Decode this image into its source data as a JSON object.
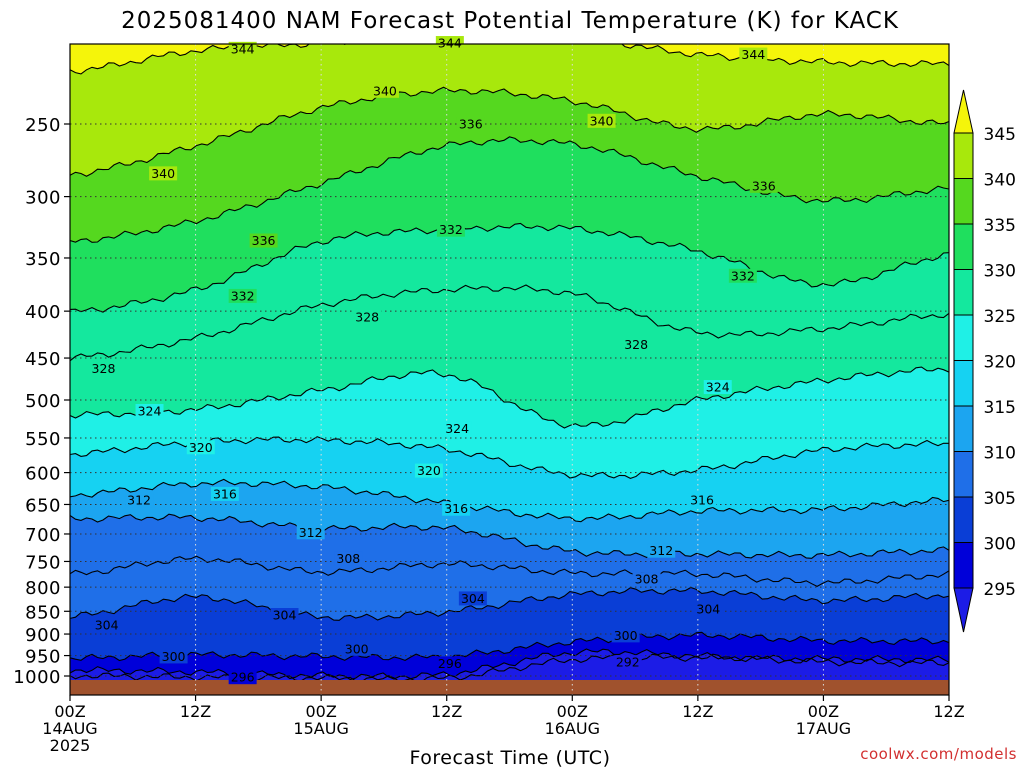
{
  "chart_data": {
    "type": "heatmap",
    "title": "2025081400 NAM Forecast Potential Temperature (K) for KACK",
    "xlabel": "Forecast Time (UTC)",
    "ylabel": "",
    "credit": "coolwx.com/models",
    "x_range_hours": [
      0,
      84
    ],
    "x_ticks": [
      {
        "hour": 0,
        "lines": [
          "00Z",
          "14AUG",
          "2025"
        ]
      },
      {
        "hour": 12,
        "lines": [
          "12Z"
        ]
      },
      {
        "hour": 24,
        "lines": [
          "00Z",
          "15AUG"
        ]
      },
      {
        "hour": 36,
        "lines": [
          "12Z"
        ]
      },
      {
        "hour": 48,
        "lines": [
          "00Z",
          "16AUG"
        ]
      },
      {
        "hour": 60,
        "lines": [
          "12Z"
        ]
      },
      {
        "hour": 72,
        "lines": [
          "00Z",
          "17AUG"
        ]
      },
      {
        "hour": 84,
        "lines": [
          "12Z"
        ]
      }
    ],
    "y_scale": "log-pressure",
    "y_range_hpa": [
      1013,
      200
    ],
    "y_ticks": [
      250,
      300,
      350,
      400,
      450,
      500,
      550,
      600,
      650,
      700,
      750,
      800,
      850,
      900,
      950,
      1000
    ],
    "grid": true,
    "colorbar": {
      "levels": [
        295,
        300,
        305,
        310,
        315,
        320,
        325,
        330,
        335,
        340,
        345
      ],
      "colors": [
        "#1c1ce6",
        "#0000d9",
        "#0a3ed6",
        "#1f6fe8",
        "#1ca5f0",
        "#16d2f2",
        "#1ff0e6",
        "#14e89e",
        "#1fdf5e",
        "#55d81f",
        "#a8e80c",
        "#f5f50a"
      ],
      "extend": "both"
    },
    "series": [
      {
        "theta": 292,
        "pressure": [
          999,
          1003,
          1005,
          1005,
          960,
          955,
          958,
          960
        ]
      },
      {
        "theta": 296,
        "pressure": [
          985,
          990,
          999,
          995,
          943,
          951,
          965,
          968
        ]
      },
      {
        "theta": 300,
        "pressure": [
          957,
          948,
          952,
          952,
          918,
          903,
          915,
          916
        ]
      },
      {
        "theta": 304,
        "pressure": [
          862,
          820,
          862,
          851,
          815,
          808,
          827,
          816
        ]
      },
      {
        "theta": 308,
        "pressure": [
          775,
          745,
          770,
          755,
          772,
          774,
          791,
          775
        ]
      },
      {
        "theta": 312,
        "pressure": [
          674,
          672,
          690,
          690,
          731,
          736,
          738,
          729
        ]
      },
      {
        "theta": 316,
        "pressure": [
          635,
          617,
          622,
          648,
          673,
          661,
          658,
          643
        ]
      },
      {
        "theta": 320,
        "pressure": [
          573,
          556,
          553,
          566,
          603,
          596,
          567,
          558
        ]
      },
      {
        "theta": 324,
        "pressure": [
          519,
          512,
          488,
          469,
          533,
          500,
          476,
          462
        ]
      },
      {
        "theta": 328,
        "pressure": [
          450,
          428,
          394,
          379,
          383,
          422,
          418,
          403
        ]
      },
      {
        "theta": 332,
        "pressure": [
          401,
          379,
          336,
          326,
          325,
          344,
          374,
          347
        ]
      },
      {
        "theta": 336,
        "pressure": [
          336,
          319,
          290,
          264,
          263,
          285,
          303,
          294
        ]
      },
      {
        "theta": 340,
        "pressure": [
          284,
          264,
          240,
          230,
          236,
          253,
          244,
          250
        ]
      },
      {
        "theta": 344,
        "pressure": [
          219,
          208,
          204,
          200,
          201,
          210,
          214,
          215
        ]
      }
    ],
    "contour_labels": [
      {
        "text": "344",
        "hour": 16.5,
        "hpa": 207
      },
      {
        "text": "344",
        "hour": 36.3,
        "hpa": 204
      },
      {
        "text": "344",
        "hour": 65.3,
        "hpa": 210
      },
      {
        "text": "340",
        "hour": 8.9,
        "hpa": 283
      },
      {
        "text": "340",
        "hour": 30.1,
        "hpa": 230
      },
      {
        "text": "340",
        "hour": 50.8,
        "hpa": 248
      },
      {
        "text": "336",
        "hour": 18.5,
        "hpa": 335
      },
      {
        "text": "336",
        "hour": 38.3,
        "hpa": 250
      },
      {
        "text": "336",
        "hour": 66.3,
        "hpa": 292
      },
      {
        "text": "332",
        "hour": 16.5,
        "hpa": 385
      },
      {
        "text": "332",
        "hour": 36.4,
        "hpa": 326
      },
      {
        "text": "332",
        "hour": 64.3,
        "hpa": 366
      },
      {
        "text": "328",
        "hour": 3.2,
        "hpa": 462
      },
      {
        "text": "328",
        "hour": 28.4,
        "hpa": 406
      },
      {
        "text": "328",
        "hour": 54.1,
        "hpa": 435
      },
      {
        "text": "324",
        "hour": 7.6,
        "hpa": 514
      },
      {
        "text": "324",
        "hour": 37.0,
        "hpa": 537
      },
      {
        "text": "324",
        "hour": 61.9,
        "hpa": 484
      },
      {
        "text": "320",
        "hour": 12.5,
        "hpa": 563
      },
      {
        "text": "320",
        "hour": 34.3,
        "hpa": 597
      },
      {
        "text": "316",
        "hour": 14.8,
        "hpa": 633
      },
      {
        "text": "316",
        "hour": 36.9,
        "hpa": 657
      },
      {
        "text": "316",
        "hour": 60.4,
        "hpa": 643
      },
      {
        "text": "312",
        "hour": 6.6,
        "hpa": 643
      },
      {
        "text": "312",
        "hour": 23.0,
        "hpa": 697
      },
      {
        "text": "312",
        "hour": 56.5,
        "hpa": 730
      },
      {
        "text": "308",
        "hour": 26.6,
        "hpa": 744
      },
      {
        "text": "308",
        "hour": 55.1,
        "hpa": 784
      },
      {
        "text": "304",
        "hour": 3.5,
        "hpa": 880
      },
      {
        "text": "304",
        "hour": 20.5,
        "hpa": 858
      },
      {
        "text": "304",
        "hour": 38.5,
        "hpa": 823
      },
      {
        "text": "304",
        "hour": 61.0,
        "hpa": 845
      },
      {
        "text": "300",
        "hour": 9.9,
        "hpa": 952
      },
      {
        "text": "300",
        "hour": 27.4,
        "hpa": 934
      },
      {
        "text": "300",
        "hour": 53.1,
        "hpa": 903
      },
      {
        "text": "296",
        "hour": 16.5,
        "hpa": 1003
      },
      {
        "text": "296",
        "hour": 36.3,
        "hpa": 969
      },
      {
        "text": "292",
        "hour": 53.3,
        "hpa": 966
      }
    ]
  }
}
